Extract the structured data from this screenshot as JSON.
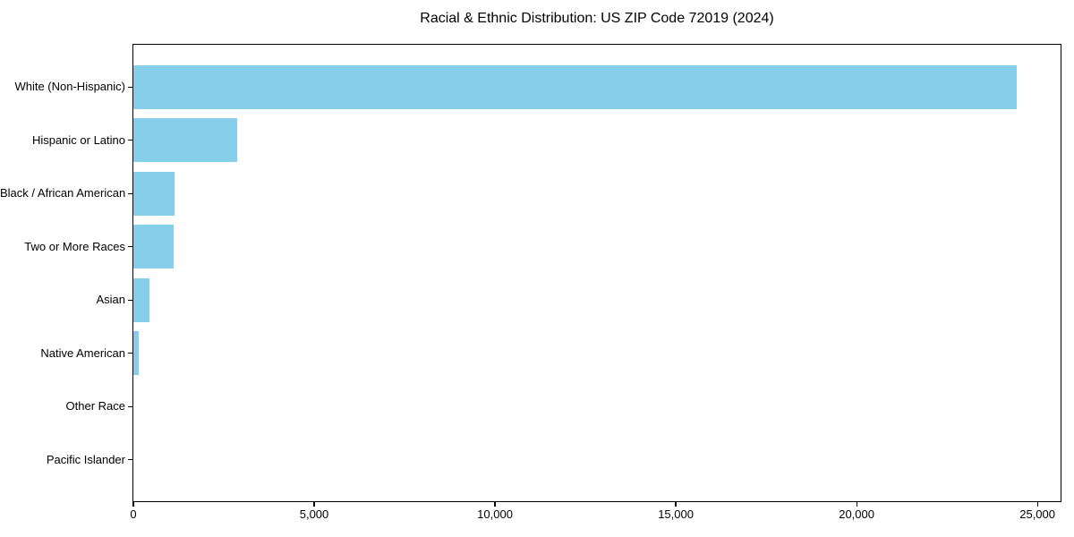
{
  "chart_data": {
    "type": "bar",
    "orientation": "horizontal",
    "title": "Racial & Ethnic Distribution: US ZIP Code 72019 (2024)",
    "categories": [
      "White (Non-Hispanic)",
      "Hispanic or Latino",
      "Black / African American",
      "Two or More Races",
      "Asian",
      "Native American",
      "Other Race",
      "Pacific Islander"
    ],
    "values": [
      24420,
      2880,
      1150,
      1120,
      445,
      150,
      0,
      0
    ],
    "xlabel": "",
    "ylabel": "",
    "xlim": [
      0,
      25640
    ],
    "xticks": [
      0,
      5000,
      10000,
      15000,
      20000,
      25000
    ],
    "xtick_labels": [
      "0",
      "5,000",
      "10,000",
      "15,000",
      "20,000",
      "25,000"
    ],
    "bar_color": "#87CEEB",
    "axis_color": "#000000",
    "grid": false,
    "legend": null
  }
}
